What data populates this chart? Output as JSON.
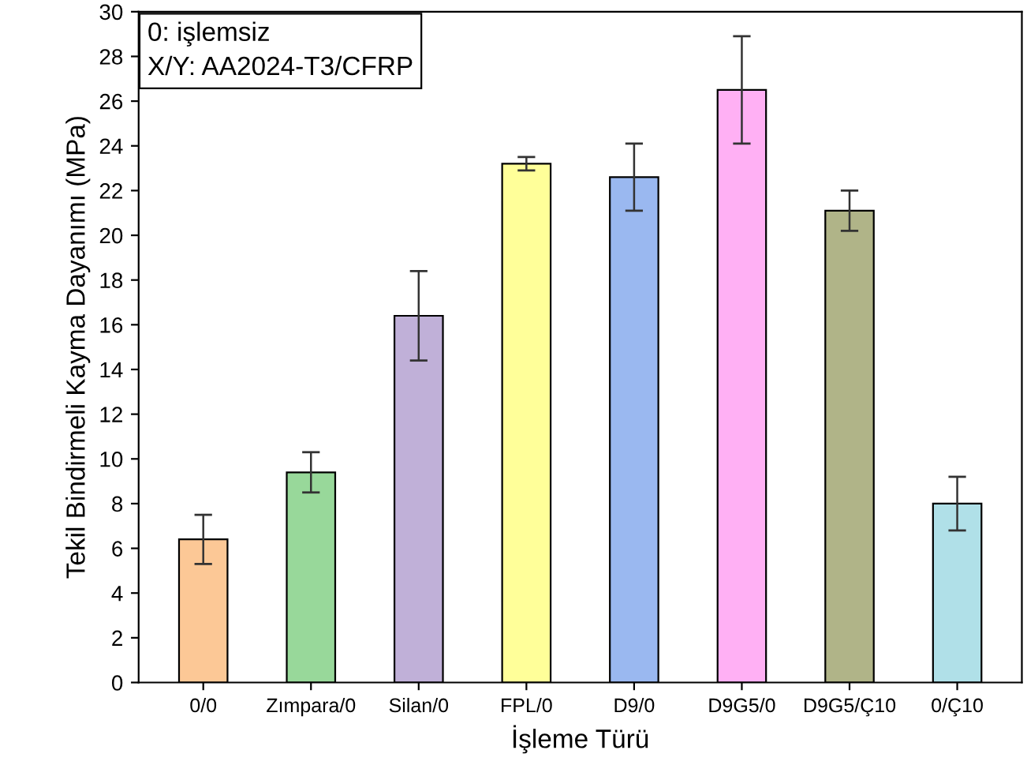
{
  "chart_data": {
    "type": "bar",
    "ylabel": "Tekil Bindirmeli Kayma Dayanımı (MPa)",
    "xlabel": "İşleme Türü",
    "categories": [
      "0/0",
      "Zımpara/0",
      "Silan/0",
      "FPL/0",
      "D9/0",
      "D9G5/0",
      "D9G5/Ç10",
      "0/Ç10"
    ],
    "values": [
      6.4,
      9.4,
      16.4,
      23.2,
      22.6,
      26.5,
      21.1,
      8.0
    ],
    "errors": [
      1.1,
      0.9,
      2.0,
      0.3,
      1.5,
      2.4,
      0.9,
      1.2
    ],
    "colors": [
      "#fcc896",
      "#98d89a",
      "#c0b0d8",
      "#ffff99",
      "#9ab8f0",
      "#ffb0f4",
      "#b0b488",
      "#b0e0e8"
    ],
    "ylim": [
      0,
      30
    ],
    "yticks": [
      0,
      2,
      4,
      6,
      8,
      10,
      12,
      14,
      16,
      18,
      20,
      22,
      24,
      26,
      28,
      30
    ],
    "annotations": [
      "0: işlemsiz",
      "X/Y: AA2024-T3/CFRP"
    ],
    "grid": false
  }
}
